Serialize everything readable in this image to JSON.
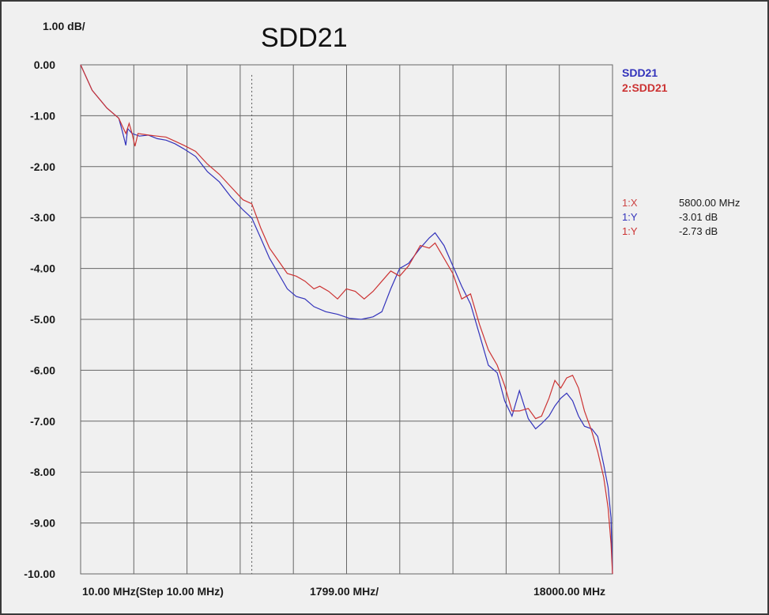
{
  "chart_data": {
    "type": "line",
    "title": "SDD21",
    "scale_label": "1.00 dB/",
    "x_axis": {
      "start_label": "10.00 MHz(Step 10.00 MHz)",
      "mid_label": "1799.00 MHz/",
      "end_label": "18000.00 MHz",
      "range_mhz": [
        10,
        18000
      ],
      "divisions": 10
    },
    "y_axis": {
      "range": [
        -10,
        0
      ],
      "ticks": [
        "0.00",
        "-1.00",
        "-2.00",
        "-3.00",
        "-4.00",
        "-5.00",
        "-6.00",
        "-7.00",
        "-8.00",
        "-9.00",
        "-10.00"
      ]
    },
    "grid": true,
    "legend_position": "top-right",
    "colors": {
      "blue": "#3333bb",
      "red": "#cc3333",
      "marker_x": "#cc4444"
    },
    "series": [
      {
        "name": "SDD21",
        "color": "#3333bb",
        "points": [
          [
            10,
            0.0
          ],
          [
            400,
            -0.5
          ],
          [
            900,
            -0.85
          ],
          [
            1300,
            -1.05
          ],
          [
            1420,
            -1.3
          ],
          [
            1540,
            -1.58
          ],
          [
            1600,
            -1.25
          ],
          [
            1750,
            -1.35
          ],
          [
            2000,
            -1.4
          ],
          [
            2300,
            -1.38
          ],
          [
            2600,
            -1.45
          ],
          [
            2900,
            -1.48
          ],
          [
            3200,
            -1.55
          ],
          [
            3500,
            -1.65
          ],
          [
            3900,
            -1.8
          ],
          [
            4300,
            -2.1
          ],
          [
            4700,
            -2.3
          ],
          [
            5100,
            -2.6
          ],
          [
            5500,
            -2.85
          ],
          [
            5800,
            -3.01
          ],
          [
            6100,
            -3.4
          ],
          [
            6400,
            -3.8
          ],
          [
            6700,
            -4.1
          ],
          [
            7000,
            -4.4
          ],
          [
            7300,
            -4.55
          ],
          [
            7600,
            -4.6
          ],
          [
            7900,
            -4.75
          ],
          [
            8300,
            -4.85
          ],
          [
            8700,
            -4.9
          ],
          [
            9100,
            -4.98
          ],
          [
            9500,
            -5.0
          ],
          [
            9900,
            -4.95
          ],
          [
            10200,
            -4.85
          ],
          [
            10500,
            -4.4
          ],
          [
            10800,
            -4.0
          ],
          [
            11100,
            -3.9
          ],
          [
            11500,
            -3.6
          ],
          [
            11800,
            -3.4
          ],
          [
            12000,
            -3.3
          ],
          [
            12300,
            -3.55
          ],
          [
            12600,
            -3.95
          ],
          [
            12900,
            -4.35
          ],
          [
            13200,
            -4.7
          ],
          [
            13500,
            -5.3
          ],
          [
            13800,
            -5.9
          ],
          [
            14100,
            -6.05
          ],
          [
            14350,
            -6.6
          ],
          [
            14600,
            -6.9
          ],
          [
            14850,
            -6.4
          ],
          [
            15150,
            -6.95
          ],
          [
            15400,
            -7.15
          ],
          [
            15600,
            -7.05
          ],
          [
            15850,
            -6.9
          ],
          [
            16050,
            -6.7
          ],
          [
            16250,
            -6.55
          ],
          [
            16450,
            -6.45
          ],
          [
            16650,
            -6.6
          ],
          [
            16850,
            -6.9
          ],
          [
            17050,
            -7.1
          ],
          [
            17300,
            -7.15
          ],
          [
            17500,
            -7.3
          ],
          [
            17700,
            -7.85
          ],
          [
            17850,
            -8.3
          ],
          [
            17950,
            -8.9
          ],
          [
            18000,
            -10.0
          ]
        ]
      },
      {
        "name": "2:SDD21",
        "color": "#cc3333",
        "points": [
          [
            10,
            0.0
          ],
          [
            400,
            -0.5
          ],
          [
            900,
            -0.85
          ],
          [
            1300,
            -1.05
          ],
          [
            1420,
            -1.2
          ],
          [
            1540,
            -1.35
          ],
          [
            1650,
            -1.15
          ],
          [
            1750,
            -1.35
          ],
          [
            1850,
            -1.6
          ],
          [
            1950,
            -1.35
          ],
          [
            2300,
            -1.38
          ],
          [
            2600,
            -1.4
          ],
          [
            2900,
            -1.42
          ],
          [
            3200,
            -1.5
          ],
          [
            3500,
            -1.58
          ],
          [
            3900,
            -1.7
          ],
          [
            4300,
            -1.95
          ],
          [
            4700,
            -2.15
          ],
          [
            5100,
            -2.4
          ],
          [
            5500,
            -2.65
          ],
          [
            5800,
            -2.73
          ],
          [
            6100,
            -3.2
          ],
          [
            6400,
            -3.6
          ],
          [
            6700,
            -3.85
          ],
          [
            7000,
            -4.1
          ],
          [
            7300,
            -4.15
          ],
          [
            7600,
            -4.25
          ],
          [
            7900,
            -4.4
          ],
          [
            8100,
            -4.35
          ],
          [
            8400,
            -4.45
          ],
          [
            8700,
            -4.6
          ],
          [
            9000,
            -4.4
          ],
          [
            9300,
            -4.45
          ],
          [
            9600,
            -4.6
          ],
          [
            9900,
            -4.45
          ],
          [
            10200,
            -4.25
          ],
          [
            10500,
            -4.05
          ],
          [
            10800,
            -4.15
          ],
          [
            11100,
            -3.95
          ],
          [
            11500,
            -3.55
          ],
          [
            11800,
            -3.6
          ],
          [
            12000,
            -3.5
          ],
          [
            12300,
            -3.8
          ],
          [
            12600,
            -4.1
          ],
          [
            12900,
            -4.6
          ],
          [
            13200,
            -4.5
          ],
          [
            13500,
            -5.1
          ],
          [
            13800,
            -5.6
          ],
          [
            14100,
            -5.9
          ],
          [
            14350,
            -6.3
          ],
          [
            14600,
            -6.8
          ],
          [
            14850,
            -6.8
          ],
          [
            15150,
            -6.75
          ],
          [
            15400,
            -6.95
          ],
          [
            15600,
            -6.9
          ],
          [
            15850,
            -6.55
          ],
          [
            16050,
            -6.2
          ],
          [
            16250,
            -6.35
          ],
          [
            16450,
            -6.15
          ],
          [
            16650,
            -6.1
          ],
          [
            16850,
            -6.35
          ],
          [
            17050,
            -6.8
          ],
          [
            17300,
            -7.2
          ],
          [
            17500,
            -7.6
          ],
          [
            17700,
            -8.1
          ],
          [
            17850,
            -8.7
          ],
          [
            17950,
            -9.4
          ],
          [
            18000,
            -10.0
          ]
        ]
      }
    ],
    "marker": {
      "x_mhz": 5800,
      "x_label": "1:X",
      "x_value": "5800.00 MHz",
      "y1_label": "1:Y",
      "y1_value": "-3.01 dB",
      "y2_label": "1:Y",
      "y2_value": "-2.73 dB"
    }
  }
}
